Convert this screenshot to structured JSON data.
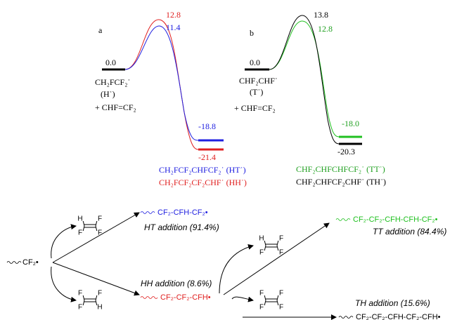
{
  "panel_a": {
    "label": "a",
    "reactant": {
      "energy": "0.0",
      "formula": "CH₂FCF₂˙",
      "abbr": "(H˙)",
      "plus": "+ CHF=CF₂"
    },
    "ts_hh": "12.8",
    "ts_ht": "11.4",
    "product_ht": {
      "energy": "-18.8",
      "label": "CH₂FCF₂CHFCF₂˙ (HT˙)"
    },
    "product_hh": {
      "energy": "-21.4",
      "label": "CH₂FCF₂CF₂CHF˙ (HH˙)"
    }
  },
  "panel_b": {
    "label": "b",
    "reactant": {
      "energy": "0.0",
      "formula": "CHF₂CHF˙",
      "abbr": "(T˙)",
      "plus": "+ CHF=CF₂"
    },
    "ts_th": "13.8",
    "ts_tt": "12.8",
    "product_tt": {
      "energy": "-18.0",
      "label": "CHF₂CHFCHFCF₂˙ (TT˙)"
    },
    "product_th": {
      "energy": "-20.3",
      "label": "CHF₂CHFCF₂CHF˙ (TH˙)"
    }
  },
  "scheme": {
    "start": "CF₂•",
    "ht": {
      "product": "CF₂-CFH-CF₂•",
      "caption": "HT addition (91.4%)"
    },
    "hh": {
      "product": "CF₂-CF₂-CFH•",
      "caption": "HH addition (8.6%)"
    },
    "tt": {
      "product": "CF₂-CF₂-CFH-CFH-CF₂•",
      "caption": "TT addition (84.4%)"
    },
    "th": {
      "product": "CF₂-CF₂-CFH-CF₂-CFH•",
      "caption": "TH addition (15.6%)"
    },
    "monomer_top": [
      "H",
      "F",
      "F",
      "F"
    ],
    "monomer_bottom": [
      "F",
      "F",
      "F",
      "H"
    ],
    "monomer_tt": [
      "H",
      "F",
      "F",
      "F"
    ],
    "monomer_th": [
      "F",
      "F",
      "F",
      "F"
    ]
  }
}
